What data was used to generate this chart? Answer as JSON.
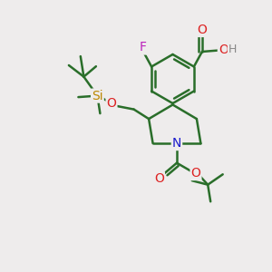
{
  "background_color": "#eeecec",
  "bond_color": "#2a6e2a",
  "bond_width": 1.8,
  "atom_colors": {
    "O": "#dd2222",
    "N": "#1a1acc",
    "F": "#bb22bb",
    "Si": "#bb8800",
    "H": "#888888",
    "C": "#2a6e2a"
  },
  "font_size": 9,
  "figsize": [
    3.0,
    3.0
  ],
  "dpi": 100
}
